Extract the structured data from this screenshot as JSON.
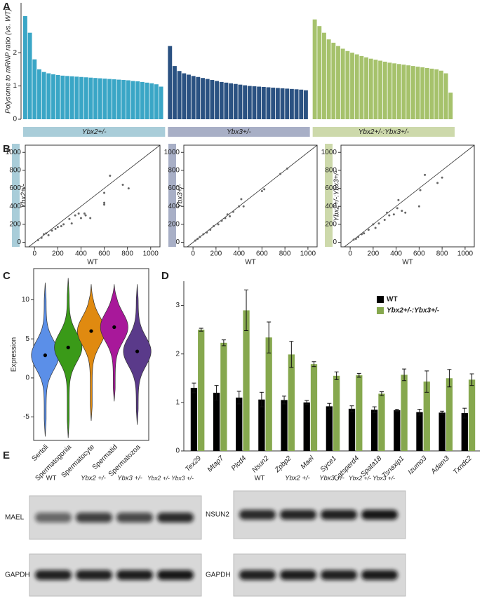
{
  "panel_labels": [
    "A",
    "B",
    "C",
    "D",
    "E"
  ],
  "chart_data": [
    {
      "type": "bar",
      "ylabel": "Polysome to mRNP ratio (vs. WT)",
      "ylim": [
        0,
        3.5
      ],
      "yticks": [
        0,
        1,
        2
      ],
      "series": [
        {
          "name": "Ybx2+/-",
          "color": "#3aa6c6",
          "band_color": "#a9cdd9",
          "values": [
            3.1,
            2.6,
            1.8,
            1.5,
            1.42,
            1.38,
            1.35,
            1.33,
            1.31,
            1.3,
            1.29,
            1.28,
            1.27,
            1.26,
            1.25,
            1.24,
            1.23,
            1.22,
            1.21,
            1.2,
            1.19,
            1.18,
            1.17,
            1.15,
            1.14,
            1.12,
            1.1,
            1.08,
            1.05,
            0.98
          ]
        },
        {
          "name": "Ybx3+/-",
          "color": "#2b5282",
          "band_color": "#a8afc6",
          "values": [
            2.2,
            1.6,
            1.45,
            1.38,
            1.34,
            1.3,
            1.27,
            1.24,
            1.21,
            1.18,
            1.15,
            1.12,
            1.1,
            1.08,
            1.06,
            1.04,
            1.02,
            1.0,
            0.99,
            0.98,
            0.97,
            0.96,
            0.95,
            0.94,
            0.93,
            0.92,
            0.91,
            0.9,
            0.89,
            0.87
          ]
        },
        {
          "name": "Ybx2+/-:Ybx3+/-",
          "color": "#a6c26c",
          "band_color": "#cdd9ab",
          "values": [
            3.0,
            2.8,
            2.6,
            2.4,
            2.3,
            2.2,
            2.12,
            2.05,
            2.0,
            1.95,
            1.9,
            1.86,
            1.82,
            1.79,
            1.76,
            1.73,
            1.7,
            1.68,
            1.66,
            1.64,
            1.62,
            1.6,
            1.58,
            1.56,
            1.54,
            1.52,
            1.5,
            1.46,
            1.38,
            0.8
          ]
        }
      ]
    },
    {
      "type": "scatter",
      "xlabel": "WT",
      "ylabel": "Ybx2+/-",
      "strip_color": "#a9cdd9",
      "color": "#666666",
      "xlim": [
        -80,
        1080
      ],
      "ylim": [
        -50,
        1080
      ],
      "xticks": [
        0,
        200,
        400,
        600,
        800,
        1000
      ],
      "yticks": [
        0,
        200,
        400,
        600,
        800,
        1000
      ],
      "x": [
        650,
        600,
        600,
        600,
        760,
        810,
        430,
        400,
        350,
        300,
        320,
        250,
        200,
        150,
        100,
        80,
        60,
        120,
        180,
        230,
        380,
        440,
        480,
        30
      ],
      "values": [
        740,
        550,
        440,
        420,
        640,
        600,
        320,
        270,
        300,
        260,
        210,
        200,
        170,
        130,
        100,
        90,
        50,
        80,
        150,
        180,
        320,
        300,
        270,
        25
      ]
    },
    {
      "type": "scatter",
      "xlabel": "WT",
      "ylabel": "Ybx3+/-",
      "strip_color": "#a8afc6",
      "color": "#666666",
      "xlim": [
        -80,
        1080
      ],
      "ylim": [
        -50,
        1080
      ],
      "xticks": [
        0,
        200,
        400,
        600,
        800,
        1000
      ],
      "yticks": [
        0,
        200,
        400,
        600,
        800,
        1000
      ],
      "x": [
        820,
        760,
        620,
        600,
        420,
        400,
        440,
        350,
        320,
        280,
        220,
        180,
        150,
        120,
        90,
        60,
        40,
        250,
        300,
        20
      ],
      "values": [
        820,
        760,
        590,
        570,
        480,
        400,
        400,
        340,
        290,
        270,
        200,
        180,
        140,
        110,
        90,
        60,
        40,
        240,
        310,
        20
      ]
    },
    {
      "type": "scatter",
      "xlabel": "WT",
      "ylabel": "Ybx2+/-:Ybx3+/-",
      "strip_color": "#cdd9ab",
      "color": "#666666",
      "xlim": [
        -80,
        1080
      ],
      "ylim": [
        -50,
        1080
      ],
      "xticks": [
        0,
        200,
        400,
        600,
        800,
        1000
      ],
      "yticks": [
        0,
        200,
        400,
        600,
        800,
        1000
      ],
      "x": [
        650,
        800,
        760,
        610,
        600,
        420,
        410,
        450,
        380,
        340,
        320,
        300,
        250,
        200,
        160,
        120,
        100,
        70,
        50,
        30,
        220,
        480
      ],
      "values": [
        750,
        720,
        660,
        580,
        400,
        470,
        380,
        350,
        310,
        300,
        330,
        250,
        210,
        200,
        140,
        100,
        90,
        60,
        40,
        30,
        160,
        330
      ]
    },
    {
      "type": "violin",
      "ylabel": "Expression",
      "ylim": [
        -8,
        14
      ],
      "yticks": [
        -5,
        0,
        5,
        10
      ],
      "categories": [
        "Sertoli",
        "Spermatogonia",
        "Spermatocyte",
        "Spermatid",
        "Spermatozoa"
      ],
      "colors": [
        "#5b8fe8",
        "#3a9a18",
        "#e08a10",
        "#a8189a",
        "#5a3a8a"
      ],
      "median": [
        2.9,
        3.9,
        6.0,
        6.5,
        3.4
      ],
      "min": [
        -7.5,
        -7.7,
        -5.5,
        -3.0,
        -6.0
      ],
      "max": [
        12.2,
        12.8,
        12.0,
        12.0,
        12.0
      ]
    },
    {
      "type": "bar",
      "ylim": [
        0,
        3.5
      ],
      "yticks": [
        0,
        1,
        2,
        3
      ],
      "categories": [
        "Tex29",
        "Mtap7",
        "Plcd4",
        "Nsun2",
        "Zpbp2",
        "Mael",
        "Syce1",
        "Catsperd4",
        "Spata18",
        "Tsnaxip1",
        "Izumo3",
        "Adam3",
        "Txndc2"
      ],
      "series": [
        {
          "name": "WT",
          "color": "#000000",
          "values": [
            1.3,
            1.2,
            1.1,
            1.06,
            1.05,
            1.0,
            0.92,
            0.87,
            0.85,
            0.84,
            0.8,
            0.79,
            0.78
          ],
          "errors": [
            0.1,
            0.15,
            0.13,
            0.15,
            0.08,
            0.04,
            0.06,
            0.06,
            0.06,
            0.02,
            0.06,
            0.03,
            0.1
          ]
        },
        {
          "name": "Ybx2+/-:Ybx3+/-",
          "color": "#86a84e",
          "values": [
            2.5,
            2.23,
            2.9,
            2.34,
            1.99,
            1.79,
            1.55,
            1.56,
            1.18,
            1.57,
            1.43,
            1.5,
            1.47
          ],
          "errors": [
            0.03,
            0.06,
            0.42,
            0.32,
            0.27,
            0.05,
            0.08,
            0.04,
            0.04,
            0.12,
            0.22,
            0.18,
            0.12
          ]
        }
      ]
    }
  ],
  "blot": {
    "lanes": [
      "WT",
      "Ybx2 +/-",
      "Ybx3 +/-",
      "Ybx2 +/- Ybx3 +/-"
    ],
    "left_proteins": [
      "MAEL",
      "GAPDH"
    ],
    "right_proteins": [
      "NSUN2",
      "GAPDH"
    ]
  }
}
